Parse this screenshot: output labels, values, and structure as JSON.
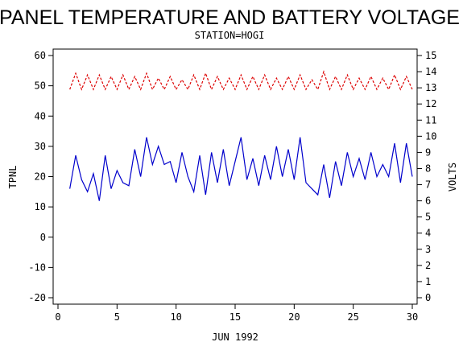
{
  "chart_data": {
    "type": "line",
    "title": "PANEL TEMPERATURE AND BATTERY VOLTAGE",
    "subtitle": "STATION=HOGI",
    "xlabel": "JUN 1992",
    "ylabel": "TPNL",
    "y2label": "VOLTS",
    "x": [
      1,
      1.5,
      2,
      2.5,
      3,
      3.5,
      4,
      4.5,
      5,
      5.5,
      6,
      6.5,
      7,
      7.5,
      8,
      8.5,
      9,
      9.5,
      10,
      10.5,
      11,
      11.5,
      12,
      12.5,
      13,
      13.5,
      14,
      14.5,
      15,
      15.5,
      16,
      16.5,
      17,
      17.5,
      18,
      18.5,
      19,
      19.5,
      20,
      20.5,
      21,
      21.5,
      22,
      22.5,
      23,
      23.5,
      24,
      24.5,
      25,
      25.5,
      26,
      26.5,
      27,
      27.5,
      28,
      28.5,
      29,
      29.5,
      30
    ],
    "series": [
      {
        "name": "TPNL",
        "color": "#0000cc",
        "dash": false,
        "axis": "y",
        "values": [
          16,
          27,
          19,
          15,
          21,
          12,
          27,
          16,
          22,
          18,
          17,
          29,
          20,
          33,
          24,
          30,
          24,
          25,
          18,
          28,
          20,
          15,
          27,
          14,
          28,
          18,
          29,
          17,
          25,
          33,
          19,
          26,
          17,
          27,
          19,
          30,
          20,
          29,
          19,
          33,
          18,
          16,
          14,
          24,
          13,
          25,
          17,
          28,
          20,
          26,
          19,
          28,
          20,
          24,
          20,
          31,
          18,
          31,
          20
        ]
      },
      {
        "name": "VOLTS",
        "color": "#dd0000",
        "dash": true,
        "axis": "y2",
        "values": [
          12.9,
          13.9,
          12.9,
          13.8,
          12.9,
          13.8,
          12.9,
          13.7,
          12.9,
          13.8,
          12.9,
          13.7,
          12.9,
          13.9,
          12.9,
          13.6,
          12.9,
          13.7,
          12.9,
          13.5,
          12.9,
          13.8,
          12.9,
          13.9,
          12.9,
          13.7,
          12.9,
          13.6,
          12.9,
          13.8,
          12.9,
          13.7,
          12.9,
          13.8,
          12.9,
          13.6,
          12.9,
          13.7,
          12.9,
          13.8,
          12.9,
          13.5,
          12.9,
          14.0,
          12.9,
          13.7,
          12.9,
          13.8,
          12.9,
          13.6,
          12.9,
          13.7,
          12.9,
          13.6,
          12.9,
          13.8,
          12.9,
          13.7,
          12.9
        ]
      }
    ],
    "xlim": [
      0,
      30
    ],
    "xticks": [
      0,
      5,
      10,
      15,
      20,
      25,
      30
    ],
    "ylim": [
      -20,
      60
    ],
    "yticks": [
      -20,
      -10,
      0,
      10,
      20,
      30,
      40,
      50,
      60
    ],
    "y2lim": [
      0,
      15
    ],
    "y2ticks": [
      0,
      1,
      2,
      3,
      4,
      5,
      6,
      7,
      8,
      9,
      10,
      11,
      12,
      13,
      14,
      15
    ]
  }
}
